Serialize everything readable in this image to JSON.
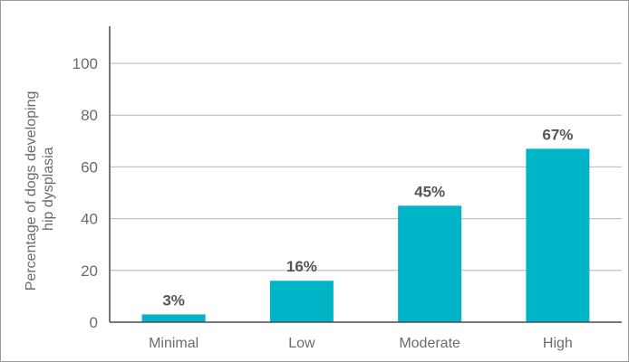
{
  "chart_data": {
    "type": "bar",
    "categories": [
      "Minimal",
      "Low",
      "Moderate",
      "High"
    ],
    "values": [
      3,
      16,
      45,
      67
    ],
    "value_labels": [
      "3%",
      "16%",
      "45%",
      "67%"
    ],
    "ylabel": [
      "Percentage of dogs developing",
      "hip dysplasia"
    ],
    "ylim": [
      0,
      110
    ],
    "yticks": [
      0,
      20,
      40,
      60,
      80,
      100
    ],
    "grid": true,
    "legend": "none",
    "colors": {
      "bar": "#00b5c8",
      "grid": "#b5b5b5",
      "axis": "#4a4a4a"
    }
  }
}
